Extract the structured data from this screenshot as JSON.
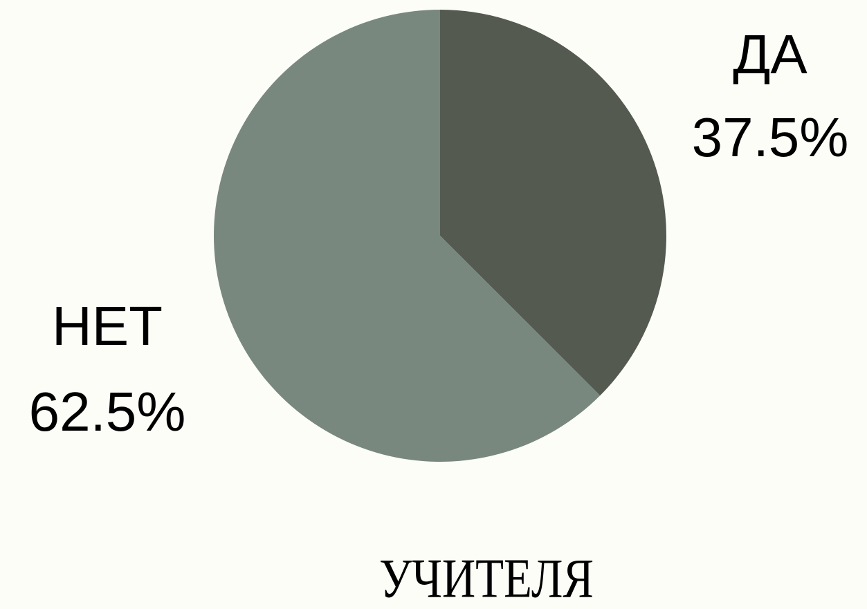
{
  "chart_data": {
    "type": "pie",
    "title": "УЧИТЕЛЯ",
    "categories": [
      "ДА",
      "НЕТ"
    ],
    "values": [
      37.5,
      62.5
    ],
    "value_labels": [
      "37.5%",
      "62.5%"
    ],
    "colors": [
      "#545a50",
      "#78887f"
    ]
  }
}
